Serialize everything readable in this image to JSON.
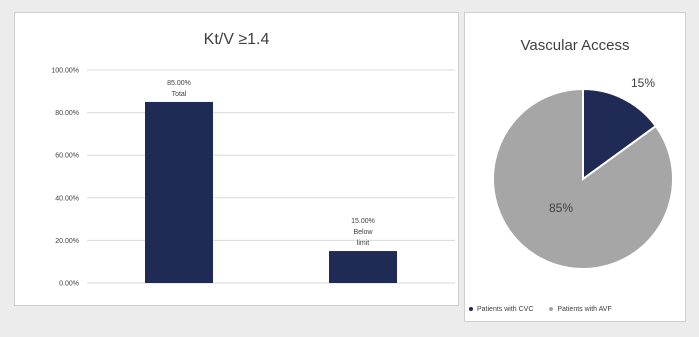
{
  "colors": {
    "navy": "#1f2a55",
    "gray": "#a6a6a6",
    "grid": "#d9d9d9",
    "text": "#404040"
  },
  "chart_data": [
    {
      "type": "bar",
      "title": "Kt/V ≥1.4",
      "categories": [
        "Total",
        "Below limit"
      ],
      "values": [
        85.0,
        15.0
      ],
      "data_labels": [
        [
          "85.00%",
          "Total"
        ],
        [
          "15.00%",
          "Below",
          "limit"
        ]
      ],
      "ylim": [
        0,
        100
      ],
      "yticks": [
        0,
        20,
        40,
        60,
        80,
        100
      ],
      "ytick_labels": [
        "0.00%",
        "20.00%",
        "40.00%",
        "60.00%",
        "80.00%",
        "100.00%"
      ],
      "xlabel": "",
      "ylabel": "",
      "grid": true,
      "bar_color": "#1f2a55"
    },
    {
      "type": "pie",
      "title": "Vascular Access",
      "labels": [
        "Patients with CVC",
        "Patients with AVF"
      ],
      "values": [
        15,
        85
      ],
      "slice_labels": [
        "15%",
        "85%"
      ],
      "colors": [
        "#1f2a55",
        "#a6a6a6"
      ],
      "legend": "bottom"
    }
  ]
}
